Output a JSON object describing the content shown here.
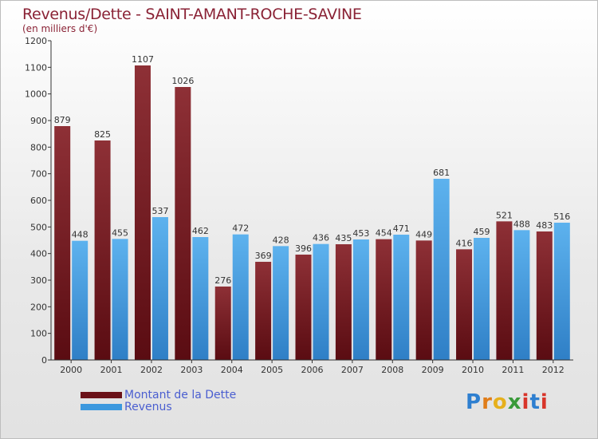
{
  "title": "Revenus/Dette - SAINT-AMANT-ROCHE-SAVINE",
  "subtitle": "(en milliers d'€)",
  "legend": {
    "dette": "Montant de la Dette",
    "revenus": "Revenus"
  },
  "logo": {
    "letters": [
      "P",
      "r",
      "o",
      "x",
      "i",
      "t",
      "i"
    ],
    "colors": [
      "#2e7fd0",
      "#e07d1a",
      "#e6b01c",
      "#3a9a3a",
      "#d8352a",
      "#2e7fd0",
      "#d8352a"
    ]
  },
  "colors": {
    "dette": "#6b1218",
    "revenus": "#3c98de",
    "axis": "#333333",
    "grid": "#b0b0b0"
  },
  "chart_data": {
    "type": "bar",
    "categories": [
      "2000",
      "2001",
      "2002",
      "2003",
      "2004",
      "2005",
      "2006",
      "2007",
      "2008",
      "2009",
      "2010",
      "2011",
      "2012"
    ],
    "series": [
      {
        "name": "Montant de la Dette",
        "values": [
          879,
          825,
          1107,
          1026,
          276,
          369,
          396,
          435,
          454,
          449,
          416,
          521,
          483
        ]
      },
      {
        "name": "Revenus",
        "values": [
          448,
          455,
          537,
          462,
          472,
          428,
          436,
          453,
          471,
          681,
          459,
          488,
          516
        ]
      }
    ],
    "yticks": [
      0,
      100,
      200,
      300,
      400,
      500,
      600,
      700,
      800,
      900,
      1000,
      1100,
      1200
    ],
    "ylim": [
      0,
      1200
    ],
    "grid": false,
    "legend_position": "bottom-left"
  }
}
